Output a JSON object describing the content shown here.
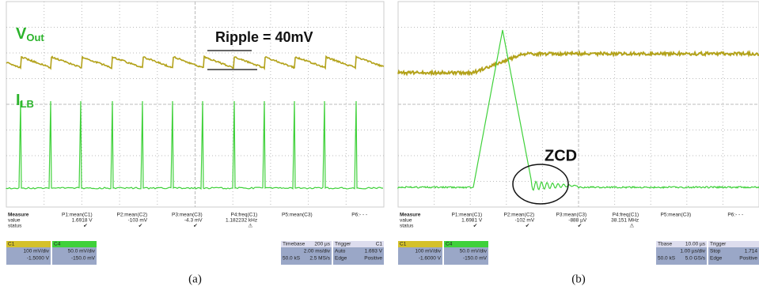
{
  "panels": [
    {
      "signals": {
        "vout": "V",
        "vout_sub": "Out",
        "ilb": "I",
        "ilb_sub": "LB",
        "annotation": "Ripple = 40mV"
      },
      "measure": {
        "title": "Measure",
        "rows": [
          "value",
          "status"
        ],
        "params": [
          {
            "name": "P1:mean(C1)",
            "value": "1.6918 V",
            "status": "✔"
          },
          {
            "name": "P2:mean(C2)",
            "value": "-103 mV",
            "status": "✔"
          },
          {
            "name": "P3:mean(C3)",
            "value": "-4.3 mV",
            "status": "✔"
          },
          {
            "name": "P4:freq(C1)",
            "value": "1.182232 kHz",
            "status": "⚠"
          },
          {
            "name": "P5:mean(C3)"
          },
          {
            "name": "P6:- - -"
          }
        ]
      },
      "channels": [
        {
          "name": "C1",
          "scale": "100 mV/div",
          "offset": "-1.5000 V"
        },
        {
          "name": "C4",
          "scale": "50.0 mV/div",
          "offset": "-150.0 mV"
        }
      ],
      "timebase": {
        "label": "Timebase",
        "value": "200 µs",
        "div": "2.00 ms/div",
        "samples": "50.0 kS",
        "rate": "2.5 MS/s"
      },
      "trigger": {
        "label": "Trigger",
        "source": "C1",
        "mode": "Auto",
        "level": "1.693 V",
        "type": "Edge",
        "slope": "Positive"
      },
      "caption": "(a)"
    },
    {
      "signals": {
        "annotation": "ZCD"
      },
      "measure": {
        "title": "Measure",
        "rows": [
          "value",
          "status"
        ],
        "params": [
          {
            "name": "P1:mean(C1)",
            "value": "1.6981 V",
            "status": "✔"
          },
          {
            "name": "P2:mean(C2)",
            "value": "-102 mV",
            "status": "✔"
          },
          {
            "name": "P3:mean(C3)",
            "value": "-888 µV",
            "status": "✔"
          },
          {
            "name": "P4:freq(C1)",
            "value": "38.151 MHz",
            "status": "⚠"
          },
          {
            "name": "P5:mean(C3)"
          },
          {
            "name": "P6:- - -"
          }
        ]
      },
      "channels": [
        {
          "name": "C1",
          "scale": "100 mV/div",
          "offset": "-1.6000 V"
        },
        {
          "name": "C4",
          "scale": "50.0 mV/div",
          "offset": "-150.0 mV"
        }
      ],
      "timebase": {
        "label": "Tbase",
        "value": "10.00 µs",
        "div": "1.00 µs/div",
        "samples": "50.0 kS",
        "rate": "5.0 GS/s"
      },
      "trigger": {
        "label": "Trigger",
        "mode": "Stop",
        "level": "1.714",
        "type": "Edge",
        "slope": "Positive"
      },
      "caption": "(b)"
    }
  ]
}
